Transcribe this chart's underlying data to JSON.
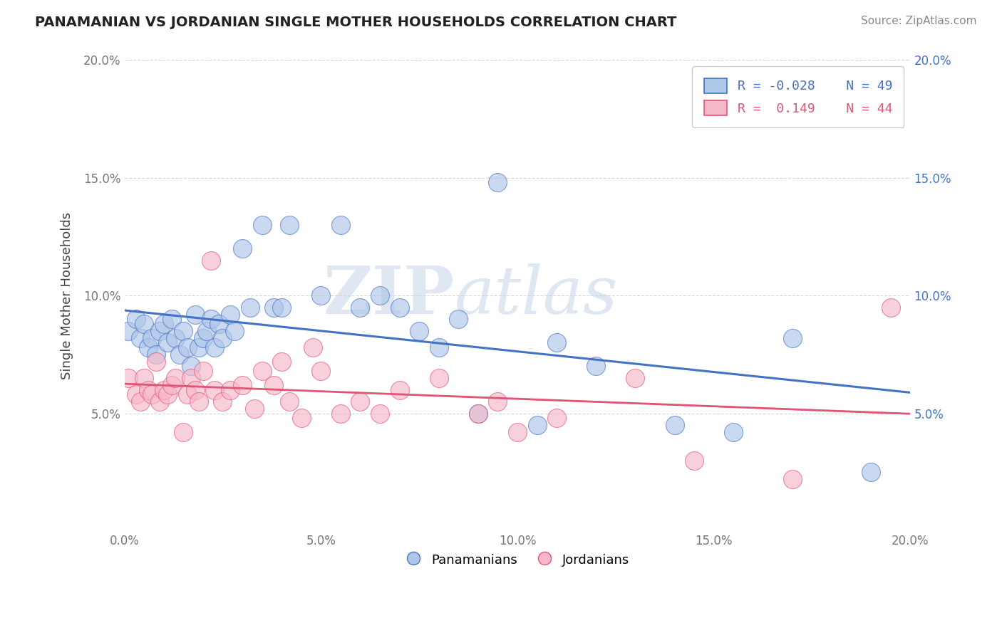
{
  "title": "PANAMANIAN VS JORDANIAN SINGLE MOTHER HOUSEHOLDS CORRELATION CHART",
  "source": "Source: ZipAtlas.com",
  "ylabel": "Single Mother Households",
  "xmin": 0.0,
  "xmax": 0.2,
  "ymin": 0.0,
  "ymax": 0.2,
  "ytick_values": [
    0.05,
    0.1,
    0.15,
    0.2
  ],
  "xtick_values": [
    0.0,
    0.05,
    0.1,
    0.15,
    0.2
  ],
  "legend_blue_r": "-0.028",
  "legend_blue_n": "49",
  "legend_pink_r": "0.149",
  "legend_pink_n": "44",
  "blue_color": "#aec6e8",
  "pink_color": "#f5b8c8",
  "blue_line_color": "#4472c4",
  "pink_line_color": "#e05575",
  "watermark_zip": "ZIP",
  "watermark_atlas": "atlas",
  "blue_scatter_x": [
    0.001,
    0.003,
    0.004,
    0.005,
    0.006,
    0.007,
    0.008,
    0.009,
    0.01,
    0.011,
    0.012,
    0.013,
    0.014,
    0.015,
    0.016,
    0.017,
    0.018,
    0.019,
    0.02,
    0.021,
    0.022,
    0.023,
    0.024,
    0.025,
    0.027,
    0.028,
    0.03,
    0.032,
    0.035,
    0.038,
    0.04,
    0.042,
    0.05,
    0.055,
    0.06,
    0.065,
    0.07,
    0.075,
    0.08,
    0.085,
    0.09,
    0.095,
    0.105,
    0.11,
    0.12,
    0.14,
    0.155,
    0.17,
    0.19
  ],
  "blue_scatter_y": [
    0.085,
    0.09,
    0.082,
    0.088,
    0.078,
    0.082,
    0.075,
    0.085,
    0.088,
    0.08,
    0.09,
    0.082,
    0.075,
    0.085,
    0.078,
    0.07,
    0.092,
    0.078,
    0.082,
    0.085,
    0.09,
    0.078,
    0.088,
    0.082,
    0.092,
    0.085,
    0.12,
    0.095,
    0.13,
    0.095,
    0.095,
    0.13,
    0.1,
    0.13,
    0.095,
    0.1,
    0.095,
    0.085,
    0.078,
    0.09,
    0.05,
    0.148,
    0.045,
    0.08,
    0.07,
    0.045,
    0.042,
    0.082,
    0.025
  ],
  "pink_scatter_x": [
    0.001,
    0.003,
    0.004,
    0.005,
    0.006,
    0.007,
    0.008,
    0.009,
    0.01,
    0.011,
    0.012,
    0.013,
    0.015,
    0.016,
    0.017,
    0.018,
    0.019,
    0.02,
    0.022,
    0.023,
    0.025,
    0.027,
    0.03,
    0.033,
    0.035,
    0.038,
    0.04,
    0.042,
    0.045,
    0.048,
    0.05,
    0.055,
    0.06,
    0.065,
    0.07,
    0.08,
    0.09,
    0.095,
    0.1,
    0.11,
    0.13,
    0.145,
    0.17,
    0.195
  ],
  "pink_scatter_y": [
    0.065,
    0.058,
    0.055,
    0.065,
    0.06,
    0.058,
    0.072,
    0.055,
    0.06,
    0.058,
    0.062,
    0.065,
    0.042,
    0.058,
    0.065,
    0.06,
    0.055,
    0.068,
    0.115,
    0.06,
    0.055,
    0.06,
    0.062,
    0.052,
    0.068,
    0.062,
    0.072,
    0.055,
    0.048,
    0.078,
    0.068,
    0.05,
    0.055,
    0.05,
    0.06,
    0.065,
    0.05,
    0.055,
    0.042,
    0.048,
    0.065,
    0.03,
    0.022,
    0.095
  ]
}
